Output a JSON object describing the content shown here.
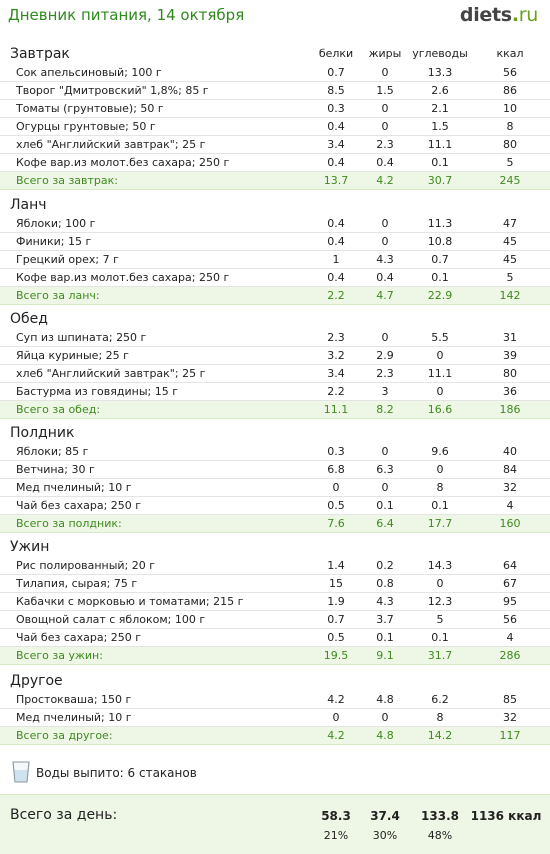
{
  "page_title": "Дневник питания, 14 октября",
  "logo": {
    "name": "diets",
    "dot": ".",
    "tld": "ru"
  },
  "columns": [
    "белки",
    "жиры",
    "углеводы",
    "ккал"
  ],
  "meals": [
    {
      "name": "Завтрак",
      "show_columns": true,
      "items": [
        {
          "name": "Сок апельсиновый; 100 г",
          "p": "0.7",
          "f": "0",
          "c": "13.3",
          "k": "56"
        },
        {
          "name": "Творог \"Дмитровский\" 1,8%; 85 г",
          "p": "8.5",
          "f": "1.5",
          "c": "2.6",
          "k": "86"
        },
        {
          "name": "Томаты (грунтовые); 50 г",
          "p": "0.3",
          "f": "0",
          "c": "2.1",
          "k": "10"
        },
        {
          "name": "Огурцы грунтовые; 50 г",
          "p": "0.4",
          "f": "0",
          "c": "1.5",
          "k": "8"
        },
        {
          "name": "хлеб \"Английский завтрак\"; 25 г",
          "p": "3.4",
          "f": "2.3",
          "c": "11.1",
          "k": "80"
        },
        {
          "name": "Кофе вар.из молот.без сахара; 250 г",
          "p": "0.4",
          "f": "0.4",
          "c": "0.1",
          "k": "5"
        }
      ],
      "total": {
        "name": "Всего за завтрак:",
        "p": "13.7",
        "f": "4.2",
        "c": "30.7",
        "k": "245"
      }
    },
    {
      "name": "Ланч",
      "show_columns": false,
      "items": [
        {
          "name": "Яблоки; 100 г",
          "p": "0.4",
          "f": "0",
          "c": "11.3",
          "k": "47"
        },
        {
          "name": "Финики; 15 г",
          "p": "0.4",
          "f": "0",
          "c": "10.8",
          "k": "45"
        },
        {
          "name": "Грецкий орех; 7 г",
          "p": "1",
          "f": "4.3",
          "c": "0.7",
          "k": "45"
        },
        {
          "name": "Кофе вар.из молот.без сахара; 250 г",
          "p": "0.4",
          "f": "0.4",
          "c": "0.1",
          "k": "5"
        }
      ],
      "total": {
        "name": "Всего за ланч:",
        "p": "2.2",
        "f": "4.7",
        "c": "22.9",
        "k": "142"
      }
    },
    {
      "name": "Обед",
      "show_columns": false,
      "items": [
        {
          "name": "Суп из шпината; 250 г",
          "p": "2.3",
          "f": "0",
          "c": "5.5",
          "k": "31"
        },
        {
          "name": "Яйца куриные; 25 г",
          "p": "3.2",
          "f": "2.9",
          "c": "0",
          "k": "39"
        },
        {
          "name": "хлеб \"Английский завтрак\"; 25 г",
          "p": "3.4",
          "f": "2.3",
          "c": "11.1",
          "k": "80"
        },
        {
          "name": "Бастурма из говядины; 15 г",
          "p": "2.2",
          "f": "3",
          "c": "0",
          "k": "36"
        }
      ],
      "total": {
        "name": "Всего за обед:",
        "p": "11.1",
        "f": "8.2",
        "c": "16.6",
        "k": "186"
      }
    },
    {
      "name": "Полдник",
      "show_columns": false,
      "items": [
        {
          "name": "Яблоки; 85 г",
          "p": "0.3",
          "f": "0",
          "c": "9.6",
          "k": "40"
        },
        {
          "name": "Ветчина; 30 г",
          "p": "6.8",
          "f": "6.3",
          "c": "0",
          "k": "84"
        },
        {
          "name": "Мед пчелиный; 10 г",
          "p": "0",
          "f": "0",
          "c": "8",
          "k": "32"
        },
        {
          "name": "Чай без сахара; 250 г",
          "p": "0.5",
          "f": "0.1",
          "c": "0.1",
          "k": "4"
        }
      ],
      "total": {
        "name": "Всего за полдник:",
        "p": "7.6",
        "f": "6.4",
        "c": "17.7",
        "k": "160"
      }
    },
    {
      "name": "Ужин",
      "show_columns": false,
      "items": [
        {
          "name": "Рис полированный; 20 г",
          "p": "1.4",
          "f": "0.2",
          "c": "14.3",
          "k": "64"
        },
        {
          "name": "Тилапия, сырая; 75 г",
          "p": "15",
          "f": "0.8",
          "c": "0",
          "k": "67"
        },
        {
          "name": "Кабачки с морковью и томатами; 215 г",
          "p": "1.9",
          "f": "4.3",
          "c": "12.3",
          "k": "95"
        },
        {
          "name": "Овощной салат с яблоком; 100 г",
          "p": "0.7",
          "f": "3.7",
          "c": "5",
          "k": "56"
        },
        {
          "name": "Чай без сахара; 250 г",
          "p": "0.5",
          "f": "0.1",
          "c": "0.1",
          "k": "4"
        }
      ],
      "total": {
        "name": "Всего за ужин:",
        "p": "19.5",
        "f": "9.1",
        "c": "31.7",
        "k": "286"
      }
    },
    {
      "name": "Другое",
      "show_columns": false,
      "items": [
        {
          "name": "Простокваша; 150 г",
          "p": "4.2",
          "f": "4.8",
          "c": "6.2",
          "k": "85"
        },
        {
          "name": "Мед пчелиный; 10 г",
          "p": "0",
          "f": "0",
          "c": "8",
          "k": "32"
        }
      ],
      "total": {
        "name": "Всего за другое:",
        "p": "4.2",
        "f": "4.8",
        "c": "14.2",
        "k": "117"
      }
    }
  ],
  "water": {
    "icon": "glass-icon",
    "text": "Воды выпито: 6 стаканов"
  },
  "day_total": {
    "label": "Всего за день:",
    "p": "58.3",
    "f": "37.4",
    "c": "133.8",
    "k": "1136 ккал",
    "p_pct": "21%",
    "f_pct": "30%",
    "c_pct": "48%"
  },
  "colors": {
    "accent": "#2f8a1e",
    "total_bg": "#eef7e6",
    "total_text": "#3f8a1f"
  }
}
